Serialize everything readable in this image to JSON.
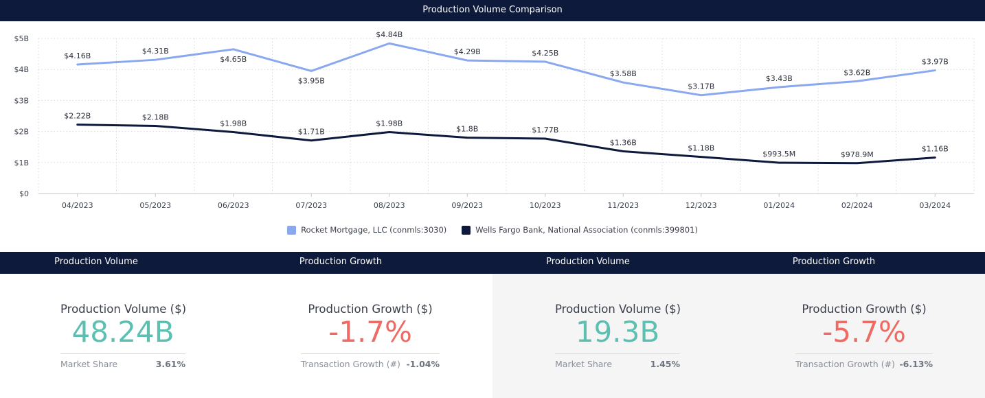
{
  "header": {
    "title": "Production Volume Comparison"
  },
  "chart_data": {
    "type": "line",
    "categories": [
      "04/2023",
      "05/2023",
      "06/2023",
      "07/2023",
      "08/2023",
      "09/2023",
      "10/2023",
      "11/2023",
      "12/2023",
      "01/2024",
      "02/2024",
      "03/2024"
    ],
    "ylim": [
      0,
      5000000000
    ],
    "yticks": [
      0,
      1000000000,
      2000000000,
      3000000000,
      4000000000,
      5000000000
    ],
    "ytick_labels": [
      "$0",
      "$1B",
      "$2B",
      "$3B",
      "$4B",
      "$5B"
    ],
    "grid": true,
    "legend_position": "bottom-center",
    "series": [
      {
        "name": "Rocket Mortgage, LLC (conmls:3030)",
        "color": "#8aa8f0",
        "values": [
          4160000000,
          4310000000,
          4650000000,
          3950000000,
          4840000000,
          4290000000,
          4250000000,
          3580000000,
          3170000000,
          3430000000,
          3620000000,
          3970000000
        ],
        "labels": [
          "$4.16B",
          "$4.31B",
          "$4.65B",
          "$3.95B",
          "$4.84B",
          "$4.29B",
          "$4.25B",
          "$3.58B",
          "$3.17B",
          "$3.43B",
          "$3.62B",
          "$3.97B"
        ],
        "label_below": [
          false,
          false,
          true,
          true,
          false,
          false,
          false,
          false,
          false,
          false,
          false,
          false
        ]
      },
      {
        "name": "Wells Fargo Bank, National Association (conmls:399801)",
        "color": "#0e1a3c",
        "values": [
          2220000000,
          2180000000,
          1980000000,
          1710000000,
          1980000000,
          1800000000,
          1770000000,
          1360000000,
          1180000000,
          993500000,
          978900000,
          1160000000
        ],
        "labels": [
          "$2.22B",
          "$2.18B",
          "$1.98B",
          "$1.71B",
          "$1.98B",
          "$1.8B",
          "$1.77B",
          "$1.36B",
          "$1.18B",
          "$993.5M",
          "$978.9M",
          "$1.16B"
        ],
        "label_below": [
          false,
          false,
          false,
          false,
          false,
          false,
          false,
          false,
          false,
          false,
          false,
          false
        ]
      }
    ]
  },
  "legend": {
    "rocket": {
      "label": "Rocket Mortgage, LLC (conmls:3030)",
      "color": "#8aa8f0"
    },
    "wells": {
      "label": "Wells Fargo Bank, National Association (conmls:399801)",
      "color": "#0e1a3c"
    }
  },
  "kpi_headers": [
    "Production Volume",
    "Production Growth",
    "Production Volume",
    "Production Growth"
  ],
  "kpis": {
    "rocket_volume": {
      "label": "Production Volume ($)",
      "value": "48.24B",
      "sub_label": "Market Share",
      "sub_value": "3.61%"
    },
    "rocket_growth": {
      "label": "Production Growth ($)",
      "value": "-1.7%",
      "sub_label": "Transaction Growth (#)",
      "sub_value": "-1.04%"
    },
    "wells_volume": {
      "label": "Production Volume ($)",
      "value": "19.3B",
      "sub_label": "Market Share",
      "sub_value": "1.45%"
    },
    "wells_growth": {
      "label": "Production Growth ($)",
      "value": "-5.7%",
      "sub_label": "Transaction Growth (#)",
      "sub_value": "-6.13%"
    }
  },
  "colors": {
    "header_bg": "#0e1a3c",
    "positive": "#5dbfb0",
    "negative": "#ee6a62",
    "panel_alt_bg": "#f5f5f6"
  }
}
